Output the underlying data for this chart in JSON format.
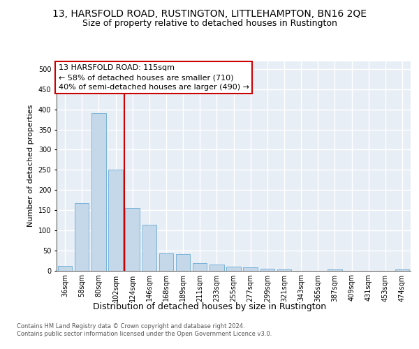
{
  "title_line1": "13, HARSFOLD ROAD, RUSTINGTON, LITTLEHAMPTON, BN16 2QE",
  "title_line2": "Size of property relative to detached houses in Rustington",
  "xlabel": "Distribution of detached houses by size in Rustington",
  "ylabel": "Number of detached properties",
  "categories": [
    "36sqm",
    "58sqm",
    "80sqm",
    "102sqm",
    "124sqm",
    "146sqm",
    "168sqm",
    "189sqm",
    "211sqm",
    "233sqm",
    "255sqm",
    "277sqm",
    "299sqm",
    "321sqm",
    "343sqm",
    "365sqm",
    "387sqm",
    "409sqm",
    "431sqm",
    "453sqm",
    "474sqm"
  ],
  "values": [
    12,
    167,
    390,
    250,
    155,
    113,
    43,
    40,
    18,
    14,
    9,
    7,
    5,
    3,
    0,
    0,
    3,
    0,
    0,
    0,
    3
  ],
  "bar_color": "#c5d8ea",
  "bar_edge_color": "#6aaad4",
  "vline_color": "#cc0000",
  "vline_pos": 3.5,
  "annotation_line1": "13 HARSFOLD ROAD: 115sqm",
  "annotation_line2": "← 58% of detached houses are smaller (710)",
  "annotation_line3": "40% of semi-detached houses are larger (490) →",
  "annotation_box_fc": "#ffffff",
  "annotation_box_ec": "#cc0000",
  "ylim": [
    0,
    520
  ],
  "yticks": [
    0,
    50,
    100,
    150,
    200,
    250,
    300,
    350,
    400,
    450,
    500
  ],
  "bg_color": "#e8eef6",
  "grid_color": "#ffffff",
  "footer": "Contains HM Land Registry data © Crown copyright and database right 2024.\nContains public sector information licensed under the Open Government Licence v3.0.",
  "title1_fontsize": 10,
  "title2_fontsize": 9,
  "ylabel_fontsize": 8,
  "xlabel_fontsize": 9,
  "tick_fontsize": 7,
  "footer_fontsize": 6,
  "annot_fontsize": 8
}
